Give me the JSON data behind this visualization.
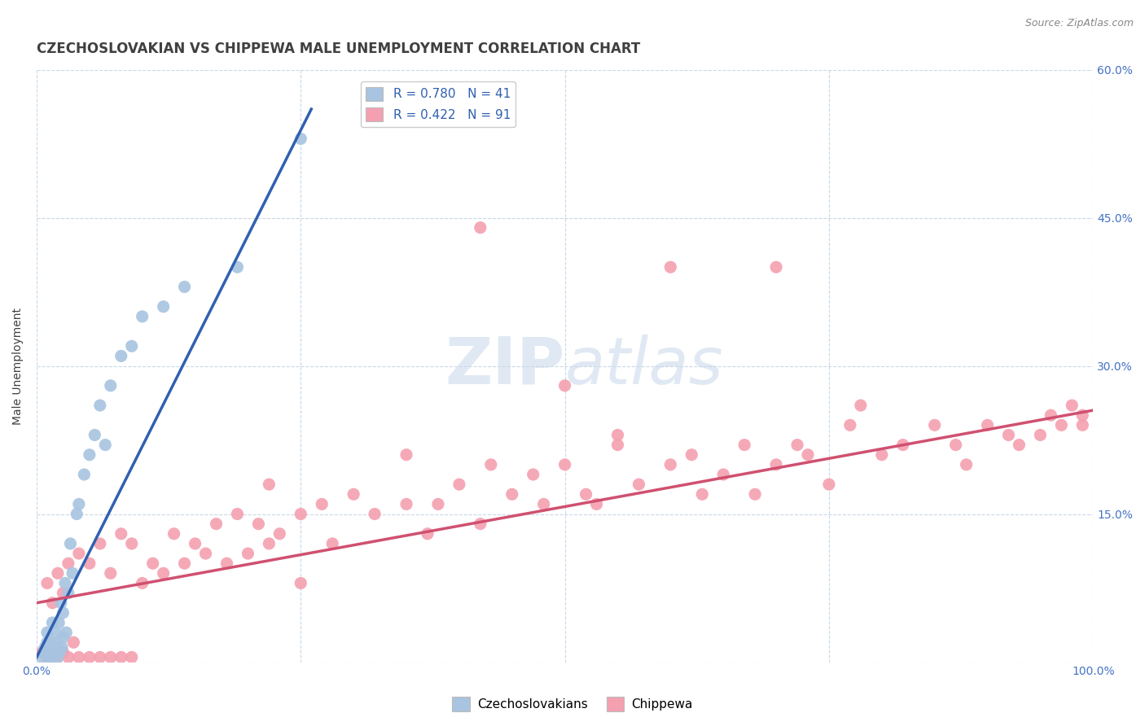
{
  "title": "CZECHOSLOVAKIAN VS CHIPPEWA MALE UNEMPLOYMENT CORRELATION CHART",
  "source_text": "Source: ZipAtlas.com",
  "ylabel": "Male Unemployment",
  "watermark": "ZIPatlas",
  "xmin": 0.0,
  "xmax": 1.0,
  "ymin": 0.0,
  "ymax": 0.6,
  "yticks": [
    0.0,
    0.15,
    0.3,
    0.45,
    0.6
  ],
  "xticks": [
    0.0,
    0.25,
    0.5,
    0.75,
    1.0
  ],
  "xtick_labels": [
    "0.0%",
    "",
    "",
    "",
    "100.0%"
  ],
  "right_ytick_labels": [
    "",
    "15.0%",
    "30.0%",
    "45.0%",
    "60.0%"
  ],
  "legend_r1": "R = 0.780   N = 41",
  "legend_r2": "R = 0.422   N = 91",
  "czech_color": "#a8c4e0",
  "chippewa_color": "#f4a0b0",
  "czech_line_color": "#3060b0",
  "chippewa_line_color": "#d05070",
  "title_color": "#404040",
  "tick_label_color": "#4472c4",
  "grid_color": "#c8d8e8",
  "background_color": "#ffffff",
  "czech_scatter_x": [
    0.005,
    0.007,
    0.008,
    0.01,
    0.01,
    0.01,
    0.012,
    0.013,
    0.015,
    0.015,
    0.016,
    0.018,
    0.019,
    0.02,
    0.02,
    0.021,
    0.022,
    0.023,
    0.024,
    0.025,
    0.025,
    0.027,
    0.028,
    0.03,
    0.032,
    0.034,
    0.038,
    0.04,
    0.045,
    0.05,
    0.055,
    0.06,
    0.065,
    0.07,
    0.08,
    0.09,
    0.1,
    0.12,
    0.14,
    0.19,
    0.25
  ],
  "czech_scatter_y": [
    0.005,
    0.01,
    0.015,
    0.01,
    0.02,
    0.03,
    0.005,
    0.02,
    0.01,
    0.04,
    0.005,
    0.03,
    0.015,
    0.005,
    0.02,
    0.04,
    0.01,
    0.06,
    0.015,
    0.025,
    0.05,
    0.08,
    0.03,
    0.07,
    0.12,
    0.09,
    0.15,
    0.16,
    0.19,
    0.21,
    0.23,
    0.26,
    0.22,
    0.28,
    0.31,
    0.32,
    0.35,
    0.36,
    0.38,
    0.4,
    0.53
  ],
  "chippewa_scatter_x": [
    0.005,
    0.01,
    0.01,
    0.015,
    0.015,
    0.02,
    0.02,
    0.025,
    0.025,
    0.03,
    0.03,
    0.035,
    0.04,
    0.04,
    0.05,
    0.05,
    0.06,
    0.06,
    0.07,
    0.07,
    0.08,
    0.08,
    0.09,
    0.09,
    0.1,
    0.11,
    0.12,
    0.13,
    0.14,
    0.15,
    0.16,
    0.17,
    0.18,
    0.19,
    0.2,
    0.21,
    0.22,
    0.23,
    0.25,
    0.25,
    0.27,
    0.28,
    0.3,
    0.32,
    0.35,
    0.37,
    0.38,
    0.4,
    0.42,
    0.43,
    0.45,
    0.47,
    0.48,
    0.5,
    0.52,
    0.53,
    0.55,
    0.57,
    0.6,
    0.62,
    0.63,
    0.65,
    0.67,
    0.68,
    0.7,
    0.72,
    0.73,
    0.75,
    0.77,
    0.8,
    0.82,
    0.85,
    0.87,
    0.88,
    0.9,
    0.92,
    0.93,
    0.95,
    0.96,
    0.97,
    0.98,
    0.99,
    0.99,
    0.6,
    0.42,
    0.7,
    0.5,
    0.35,
    0.22,
    0.55,
    0.78
  ],
  "chippewa_scatter_y": [
    0.01,
    0.005,
    0.08,
    0.01,
    0.06,
    0.005,
    0.09,
    0.01,
    0.07,
    0.005,
    0.1,
    0.02,
    0.005,
    0.11,
    0.005,
    0.1,
    0.005,
    0.12,
    0.005,
    0.09,
    0.005,
    0.13,
    0.005,
    0.12,
    0.08,
    0.1,
    0.09,
    0.13,
    0.1,
    0.12,
    0.11,
    0.14,
    0.1,
    0.15,
    0.11,
    0.14,
    0.12,
    0.13,
    0.15,
    0.08,
    0.16,
    0.12,
    0.17,
    0.15,
    0.16,
    0.13,
    0.16,
    0.18,
    0.14,
    0.2,
    0.17,
    0.19,
    0.16,
    0.2,
    0.17,
    0.16,
    0.22,
    0.18,
    0.2,
    0.21,
    0.17,
    0.19,
    0.22,
    0.17,
    0.2,
    0.22,
    0.21,
    0.18,
    0.24,
    0.21,
    0.22,
    0.24,
    0.22,
    0.2,
    0.24,
    0.23,
    0.22,
    0.23,
    0.25,
    0.24,
    0.26,
    0.25,
    0.24,
    0.4,
    0.44,
    0.4,
    0.28,
    0.21,
    0.18,
    0.23,
    0.26
  ],
  "czech_line_x": [
    0.0,
    0.26
  ],
  "czech_line_y": [
    0.005,
    0.56
  ],
  "chippewa_line_x": [
    0.0,
    1.0
  ],
  "chippewa_line_y": [
    0.06,
    0.255
  ]
}
